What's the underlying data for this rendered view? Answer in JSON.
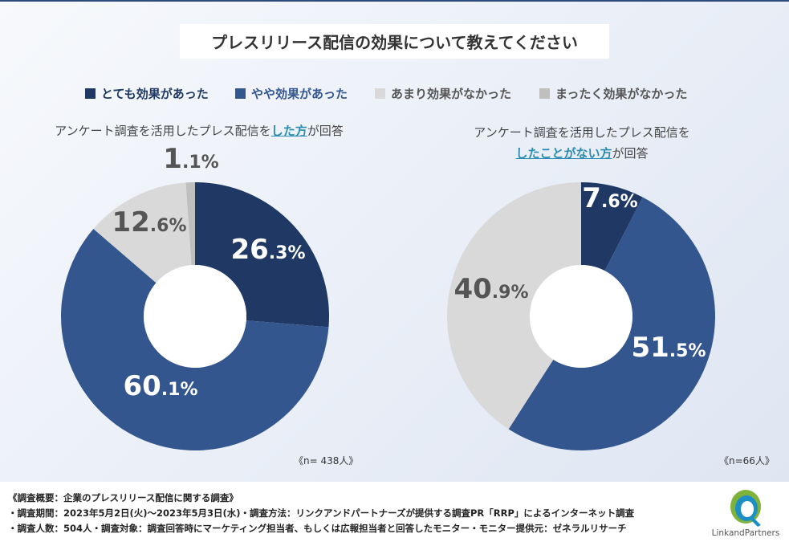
{
  "title": "プレスリリース配信の効果について教えてください",
  "legend": [
    {
      "label": "とても効果があった",
      "color": "#1f3864",
      "text_color": "#1f3864"
    },
    {
      "label": "やや効果があった",
      "color": "#34568f",
      "text_color": "#34568f"
    },
    {
      "label": "あまり効果がなかった",
      "color": "#d9d9d9",
      "text_color": "#555555"
    },
    {
      "label": "まったく効果がなかった",
      "color": "#bfbfbf",
      "text_color": "#555555"
    }
  ],
  "left_subtitle": {
    "pre": "アンケート調査を活用したプレス配信を",
    "highlight": "した方",
    "post": "が回答"
  },
  "right_subtitle": {
    "line1": "アンケート調査を活用したプレス配信を",
    "highlight": "したことがない方",
    "post": "が回答"
  },
  "left_n": "《n= 438人》",
  "right_n": "《n=66人》",
  "chart_data": [
    {
      "type": "pie",
      "title": "アンケート調査を活用したプレス配信をした方が回答",
      "categories": [
        "とても効果があった",
        "やや効果があった",
        "あまり効果がなかった",
        "まったく効果がなかった"
      ],
      "values": [
        26.3,
        60.1,
        12.6,
        1.1
      ],
      "unit": "%",
      "n": 438
    },
    {
      "type": "pie",
      "title": "アンケート調査を活用したプレス配信をしたことがない方が回答",
      "categories": [
        "とても効果があった",
        "やや効果があった",
        "あまり効果がなかった",
        "まったく効果がなかった"
      ],
      "values": [
        7.6,
        51.5,
        40.9,
        0
      ],
      "unit": "%",
      "n": 66
    }
  ],
  "footer": {
    "line1": "《調査概要：企業のプレスリリース配信に関する調査》",
    "line2": "・調査期間：2023年5月2日(火)～2023年5月3日(水)・調査方法：リンクアンドパートナーズが提供する調査PR「RRP」によるインターネット調査",
    "line3": "・調査人数：504人・調査対象：調査回答時にマーケティング担当者、もしくは広報担当者と回答したモニター・モニター提供元：ゼネラルリサーチ"
  },
  "logo_text": "LinkandPartners"
}
